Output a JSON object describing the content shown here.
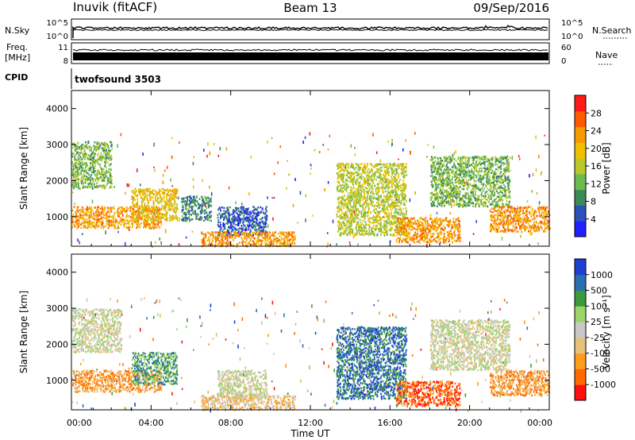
{
  "header": {
    "station": "Inuvik (fitACF)",
    "beam": "Beam 13",
    "date": "09/Sep/2016"
  },
  "strip_panels": {
    "nsky": {
      "label": "N.Sky",
      "left_ticks": [
        "10^5",
        "10^0"
      ],
      "right_ticks": [
        "10^5",
        "10^0"
      ],
      "right_label": "N.Search"
    },
    "freq": {
      "label_line1": "Freq.",
      "label_line2": "[MHz]",
      "left_ticks": [
        "11",
        "8"
      ],
      "right_ticks": [
        "60",
        "0"
      ],
      "right_label": "Nave"
    },
    "cpid": {
      "label": "CPID",
      "value": "twofsound 3503"
    }
  },
  "colors": {
    "power": [
      "#1f1fff",
      "#2a52b8",
      "#3a8a5a",
      "#6dbb4e",
      "#b9c92a",
      "#f0c000",
      "#f59a00",
      "#ff5a00",
      "#ff1a1a"
    ],
    "velocity": [
      "#ff1010",
      "#ff6a00",
      "#ff9c1a",
      "#e6c27a",
      "#c8c8c8",
      "#9ad46a",
      "#3c9a3c",
      "#2a6fb0",
      "#1f3fd0"
    ]
  },
  "chart_data": [
    {
      "type": "heatmap",
      "title": "",
      "xlabel": "Time UT",
      "ylabel": "Slant Range [km]",
      "xticks": [
        "00:00",
        "04:00",
        "08:00",
        "12:00",
        "16:00",
        "20:00",
        "00:00"
      ],
      "xlim": [
        0,
        24
      ],
      "ylim": [
        180,
        4500
      ],
      "yticks": [
        1000,
        2000,
        3000,
        4000
      ],
      "colorbar": {
        "label": "Power [dB]",
        "ticks": [
          "4",
          "8",
          "12",
          "16",
          "20",
          "24",
          "28"
        ],
        "range": [
          0,
          30
        ]
      },
      "regions": [
        {
          "t0": 0.0,
          "t1": 2.0,
          "r0": 1800,
          "r1": 3100,
          "level": 11
        },
        {
          "t0": 0.0,
          "t1": 4.5,
          "r0": 700,
          "r1": 1300,
          "level": 23
        },
        {
          "t0": 3.0,
          "t1": 5.3,
          "r0": 900,
          "r1": 1800,
          "level": 20
        },
        {
          "t0": 5.5,
          "t1": 7.0,
          "r0": 900,
          "r1": 1600,
          "level": 6
        },
        {
          "t0": 7.3,
          "t1": 9.8,
          "r0": 500,
          "r1": 1300,
          "level": 5
        },
        {
          "t0": 6.5,
          "t1": 11.2,
          "r0": 200,
          "r1": 600,
          "level": 22
        },
        {
          "t0": 13.3,
          "t1": 16.8,
          "r0": 500,
          "r1": 2500,
          "level": 14
        },
        {
          "t0": 16.3,
          "t1": 19.5,
          "r0": 300,
          "r1": 1000,
          "level": 22
        },
        {
          "t0": 18.0,
          "t1": 22.0,
          "r0": 1300,
          "r1": 2700,
          "level": 12
        },
        {
          "t0": 21.0,
          "t1": 24.0,
          "r0": 600,
          "r1": 1300,
          "level": 24
        }
      ]
    },
    {
      "type": "heatmap",
      "title": "",
      "xlabel": "Time UT",
      "ylabel": "Slant Range [km]",
      "xticks": [
        "00:00",
        "04:00",
        "08:00",
        "12:00",
        "16:00",
        "20:00",
        "00:00"
      ],
      "xlim": [
        0,
        24
      ],
      "ylim": [
        180,
        4500
      ],
      "yticks": [
        1000,
        2000,
        3000,
        4000
      ],
      "colorbar": {
        "label": "Velocity [m s⁻¹]",
        "ticks": [
          "1000",
          "500",
          "100",
          "25",
          "-25",
          "-100",
          "-500",
          "-1000"
        ]
      },
      "regions": [
        {
          "t0": 0.0,
          "t1": 2.5,
          "r0": 1800,
          "r1": 3000,
          "level": 4
        },
        {
          "t0": 0.0,
          "t1": 4.5,
          "r0": 700,
          "r1": 1300,
          "level": 2
        },
        {
          "t0": 3.0,
          "t1": 5.3,
          "r0": 900,
          "r1": 1800,
          "level": 6
        },
        {
          "t0": 7.3,
          "t1": 9.8,
          "r0": 500,
          "r1": 1300,
          "level": 4
        },
        {
          "t0": 6.5,
          "t1": 11.2,
          "r0": 200,
          "r1": 600,
          "level": 3
        },
        {
          "t0": 13.3,
          "t1": 16.8,
          "r0": 500,
          "r1": 2500,
          "level": 7
        },
        {
          "t0": 16.3,
          "t1": 19.5,
          "r0": 300,
          "r1": 1000,
          "level": 1
        },
        {
          "t0": 18.0,
          "t1": 22.0,
          "r0": 1300,
          "r1": 2700,
          "level": 4
        },
        {
          "t0": 21.0,
          "t1": 24.0,
          "r0": 600,
          "r1": 1300,
          "level": 2
        }
      ]
    }
  ]
}
